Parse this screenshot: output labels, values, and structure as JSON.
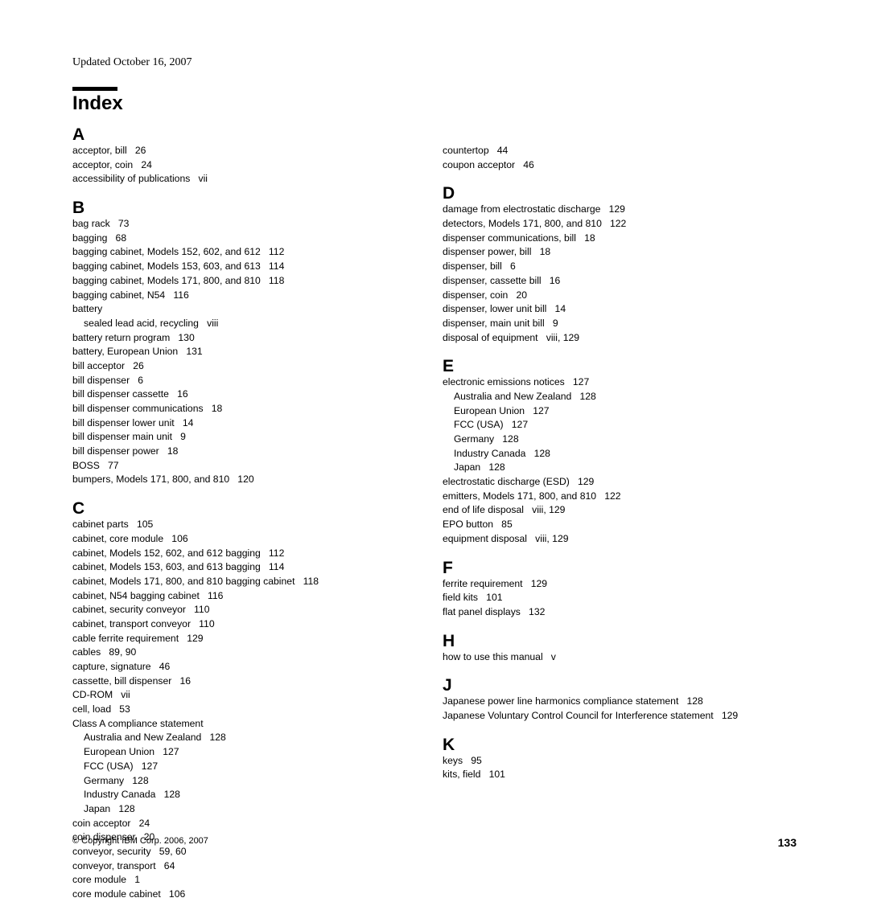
{
  "header": {
    "updated": "Updated October 16, 2007",
    "index_label": "Index"
  },
  "footer": {
    "copyright": "© Copyright IBM Corp. 2006, 2007",
    "page_number": "133"
  },
  "colors": {
    "background": "#ffffff",
    "text": "#000000",
    "rule": "#000000"
  },
  "typography": {
    "body_font": "Arial, Helvetica, sans-serif",
    "updated_font": "Book Antiqua, Palatino, serif",
    "index_title_size_pt": 18,
    "section_letter_size_pt": 16,
    "entry_size_pt": 9
  },
  "sections_col1": [
    {
      "letter": "A",
      "entries": [
        {
          "t": "acceptor, bill",
          "p": "26"
        },
        {
          "t": "acceptor, coin",
          "p": "24"
        },
        {
          "t": "accessibility of publications",
          "p": "vii"
        }
      ]
    },
    {
      "letter": "B",
      "entries": [
        {
          "t": "bag rack",
          "p": "73"
        },
        {
          "t": "bagging",
          "p": "68"
        },
        {
          "t": "bagging cabinet, Models 152, 602, and 612",
          "p": "112"
        },
        {
          "t": "bagging cabinet, Models 153, 603, and 613",
          "p": "114"
        },
        {
          "t": "bagging cabinet, Models 171, 800, and 810",
          "p": "118"
        },
        {
          "t": "bagging cabinet, N54",
          "p": "116"
        },
        {
          "t": "battery",
          "p": ""
        },
        {
          "t": "sealed lead acid, recycling",
          "p": "viii",
          "indent": 1
        },
        {
          "t": "battery return program",
          "p": "130"
        },
        {
          "t": "battery, European Union",
          "p": "131"
        },
        {
          "t": "bill acceptor",
          "p": "26"
        },
        {
          "t": "bill dispenser",
          "p": "6"
        },
        {
          "t": "bill dispenser cassette",
          "p": "16"
        },
        {
          "t": "bill dispenser communications",
          "p": "18"
        },
        {
          "t": "bill dispenser lower unit",
          "p": "14"
        },
        {
          "t": "bill dispenser main unit",
          "p": "9"
        },
        {
          "t": "bill dispenser power",
          "p": "18"
        },
        {
          "t": "BOSS",
          "p": "77"
        },
        {
          "t": "bumpers, Models 171, 800, and 810",
          "p": "120"
        }
      ]
    },
    {
      "letter": "C",
      "entries": [
        {
          "t": "cabinet parts",
          "p": "105"
        },
        {
          "t": "cabinet, core module",
          "p": "106"
        },
        {
          "t": "cabinet, Models 152, 602, and 612 bagging",
          "p": "112"
        },
        {
          "t": "cabinet, Models 153, 603, and 613 bagging",
          "p": "114"
        },
        {
          "t": "cabinet, Models 171, 800, and 810 bagging cabinet",
          "p": "118",
          "hang": true
        },
        {
          "t": "cabinet, N54 bagging cabinet",
          "p": "116"
        },
        {
          "t": "cabinet, security conveyor",
          "p": "110"
        },
        {
          "t": "cabinet, transport conveyor",
          "p": "110"
        },
        {
          "t": "cable ferrite requirement",
          "p": "129"
        },
        {
          "t": "cables",
          "p": "89, 90"
        },
        {
          "t": "capture, signature",
          "p": "46"
        },
        {
          "t": "cassette, bill dispenser",
          "p": "16"
        },
        {
          "t": "CD-ROM",
          "p": "vii"
        },
        {
          "t": "cell, load",
          "p": "53"
        },
        {
          "t": "Class A compliance statement",
          "p": ""
        },
        {
          "t": "Australia and New Zealand",
          "p": "128",
          "indent": 1
        },
        {
          "t": "European Union",
          "p": "127",
          "indent": 1
        },
        {
          "t": "FCC (USA)",
          "p": "127",
          "indent": 1
        },
        {
          "t": "Germany",
          "p": "128",
          "indent": 1
        },
        {
          "t": "Industry Canada",
          "p": "128",
          "indent": 1
        },
        {
          "t": "Japan",
          "p": "128",
          "indent": 1
        },
        {
          "t": "coin acceptor",
          "p": "24"
        },
        {
          "t": "coin dispenser",
          "p": "20"
        },
        {
          "t": "conveyor, security",
          "p": "59, 60"
        },
        {
          "t": "conveyor, transport",
          "p": "64"
        },
        {
          "t": "core module",
          "p": "1"
        },
        {
          "t": "core module cabinet",
          "p": "106"
        }
      ]
    }
  ],
  "col2_top_entries": [
    {
      "t": "countertop",
      "p": "44"
    },
    {
      "t": "coupon acceptor",
      "p": "46"
    }
  ],
  "sections_col2": [
    {
      "letter": "D",
      "entries": [
        {
          "t": "damage from electrostatic discharge",
          "p": "129"
        },
        {
          "t": "detectors, Models 171, 800, and 810",
          "p": "122"
        },
        {
          "t": "dispenser communications, bill",
          "p": "18"
        },
        {
          "t": "dispenser power, bill",
          "p": "18"
        },
        {
          "t": "dispenser, bill",
          "p": "6"
        },
        {
          "t": "dispenser, cassette bill",
          "p": "16"
        },
        {
          "t": "dispenser, coin",
          "p": "20"
        },
        {
          "t": "dispenser, lower unit bill",
          "p": "14"
        },
        {
          "t": "dispenser, main unit bill",
          "p": "9"
        },
        {
          "t": "disposal of equipment",
          "p": "viii, 129"
        }
      ]
    },
    {
      "letter": "E",
      "entries": [
        {
          "t": "electronic emissions notices",
          "p": "127"
        },
        {
          "t": "Australia and New Zealand",
          "p": "128",
          "indent": 1
        },
        {
          "t": "European Union",
          "p": "127",
          "indent": 1
        },
        {
          "t": "FCC (USA)",
          "p": "127",
          "indent": 1
        },
        {
          "t": "Germany",
          "p": "128",
          "indent": 1
        },
        {
          "t": "Industry Canada",
          "p": "128",
          "indent": 1
        },
        {
          "t": "Japan",
          "p": "128",
          "indent": 1
        },
        {
          "t": "electrostatic discharge (ESD)",
          "p": "129"
        },
        {
          "t": "emitters, Models 171, 800, and 810",
          "p": "122"
        },
        {
          "t": "end of life disposal",
          "p": "viii, 129"
        },
        {
          "t": "EPO button",
          "p": "85"
        },
        {
          "t": "equipment disposal",
          "p": "viii, 129"
        }
      ]
    },
    {
      "letter": "F",
      "entries": [
        {
          "t": "ferrite requirement",
          "p": "129"
        },
        {
          "t": "field kits",
          "p": "101"
        },
        {
          "t": "flat panel displays",
          "p": "132"
        }
      ]
    },
    {
      "letter": "H",
      "entries": [
        {
          "t": "how to use this manual",
          "p": "v"
        }
      ]
    },
    {
      "letter": "J",
      "entries": [
        {
          "t": "Japanese power line harmonics compliance statement",
          "p": "128",
          "hang": true
        },
        {
          "t": "Japanese Voluntary Control Council for Interference statement",
          "p": "129",
          "hang": true
        }
      ]
    },
    {
      "letter": "K",
      "entries": [
        {
          "t": "keys",
          "p": "95"
        },
        {
          "t": "kits, field",
          "p": "101"
        }
      ]
    }
  ]
}
